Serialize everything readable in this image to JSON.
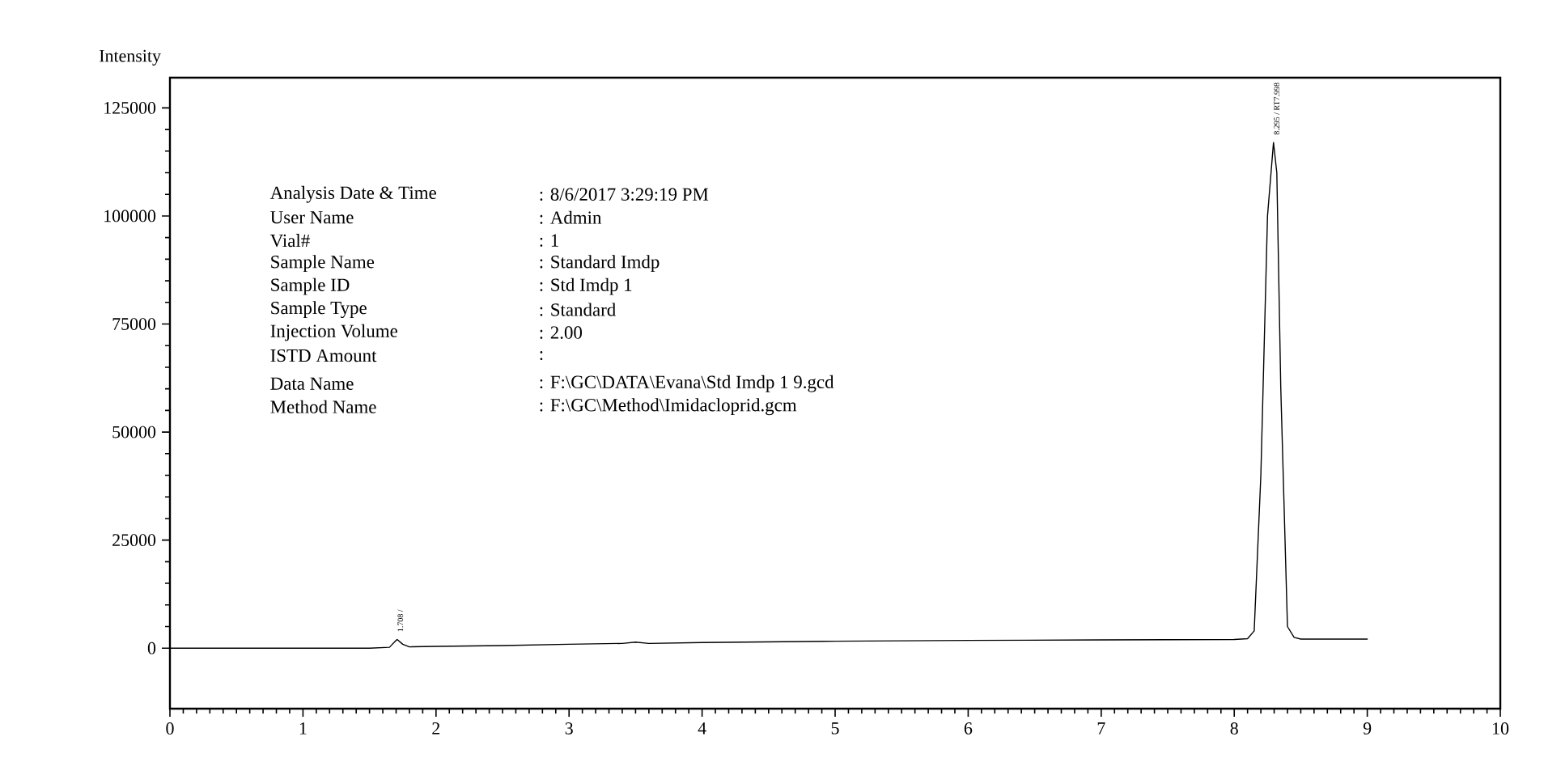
{
  "chart_data": {
    "type": "line",
    "ylabel": "Intensity",
    "x": [
      0,
      0.5,
      1.0,
      1.5,
      1.65,
      1.7,
      1.708,
      1.75,
      1.8,
      2.0,
      2.5,
      3.0,
      3.4,
      3.5,
      3.6,
      4.0,
      5.0,
      6.0,
      7.0,
      8.0,
      8.1,
      8.15,
      8.2,
      8.25,
      8.295,
      8.32,
      8.35,
      8.4,
      8.45,
      8.5,
      9.0
    ],
    "series": [
      {
        "color": "#000000",
        "values": [
          0,
          0,
          0,
          0,
          200,
          1800,
          2000,
          900,
          300,
          400,
          600,
          900,
          1100,
          1400,
          1100,
          1300,
          1600,
          1800,
          1900,
          2000,
          2200,
          4000,
          40000,
          100000,
          117000,
          110000,
          60000,
          5000,
          2500,
          2100,
          2100
        ]
      }
    ],
    "xlim": [
      0,
      10
    ],
    "xticks": [
      0,
      1,
      2,
      3,
      4,
      5,
      6,
      7,
      8,
      9,
      10
    ],
    "ylim": [
      -14000,
      132000
    ],
    "yticks": [
      0,
      25000,
      50000,
      75000,
      100000,
      125000
    ],
    "grid": false,
    "marker": "none",
    "line_style": "solid",
    "annotations": [
      {
        "text": "1.708 /",
        "x": 1.708,
        "y": 2000
      },
      {
        "text": "8.295 / RT7.998",
        "x": 8.295,
        "y": 117000
      },
      "Analysis Date & Time",
      ": 8/6/2017 3:29:19 PM",
      "User Name",
      ": Admin",
      "Vial#",
      ": 1",
      "Sample Name",
      ": Standard Imdp",
      "Sample ID",
      ": Std Imdp 1",
      "Sample Type",
      ": Standard",
      "Injection Volume",
      ": 2.00",
      "ISTD Amount",
      ":",
      "Data Name",
      ": F:\\GC\\DATA\\Evana\\Std Imdp 1 9.gcd",
      "Method Name",
      ": F:\\GC\\Method\\Imidacloprid.gcm"
    ]
  }
}
